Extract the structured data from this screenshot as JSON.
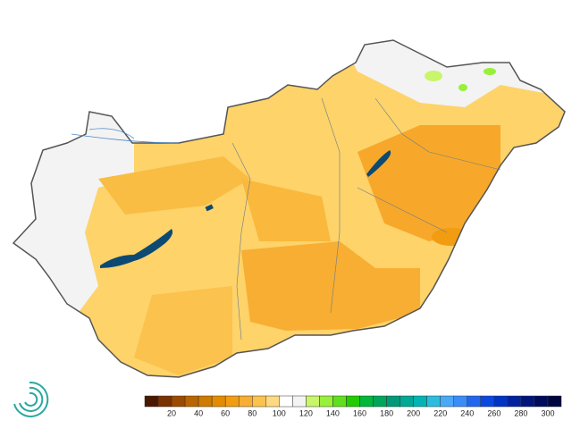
{
  "legend": {
    "range": [
      0,
      310
    ],
    "colors": [
      "#4a1800",
      "#7a3200",
      "#9c4a00",
      "#b86400",
      "#d07a00",
      "#e48c00",
      "#f29c12",
      "#f8ae32",
      "#fcc24e",
      "#fdd980",
      "#ffffff",
      "#f4f4f4",
      "#c8f56a",
      "#98f03a",
      "#5fe01a",
      "#22cc00",
      "#00b83a",
      "#00a65a",
      "#009a78",
      "#00a896",
      "#00b4b4",
      "#2cbce0",
      "#4aa8f8",
      "#3a8cf8",
      "#2266f0",
      "#0a48e0",
      "#0034c4",
      "#0022a0",
      "#00147c",
      "#000a5c",
      "#000440"
    ],
    "ticks": [
      20,
      40,
      60,
      80,
      100,
      120,
      140,
      160,
      180,
      200,
      220,
      240,
      260,
      280,
      300
    ]
  }
}
